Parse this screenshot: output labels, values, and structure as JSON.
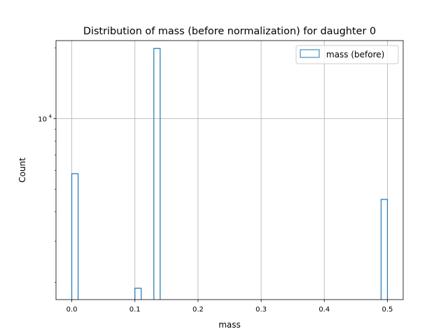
{
  "chart_data": {
    "type": "bar",
    "title": "Distribution of mass (before normalization) for daughter 0",
    "xlabel": "mass",
    "ylabel": "Count",
    "xlim": [
      -0.025,
      0.525
    ],
    "ylim": [
      1690,
      21500
    ],
    "yscale": "log",
    "x_ticks": [
      0.0,
      0.1,
      0.2,
      0.3,
      0.4,
      0.5
    ],
    "x_tick_labels": [
      "0.0",
      "0.1",
      "0.2",
      "0.3",
      "0.4",
      "0.5"
    ],
    "y_major_ticks": [
      10000
    ],
    "y_major_tick_labels": [
      {
        "base": "10",
        "exp": "4"
      }
    ],
    "y_minor_ticks": [
      2000,
      3000,
      4000,
      5000,
      6000,
      7000,
      8000,
      9000,
      20000
    ],
    "grid": true,
    "legend_position": "top-right",
    "histtype": "step",
    "series": [
      {
        "name": "mass (before)",
        "color": "#1f77b4",
        "bins": [
          {
            "x0": 0.0,
            "x1": 0.01,
            "count": 5820
          },
          {
            "x0": 0.1,
            "x1": 0.11,
            "count": 1890
          },
          {
            "x0": 0.13,
            "x1": 0.14,
            "count": 19900
          },
          {
            "x0": 0.49,
            "x1": 0.5,
            "count": 4520
          }
        ]
      }
    ]
  }
}
